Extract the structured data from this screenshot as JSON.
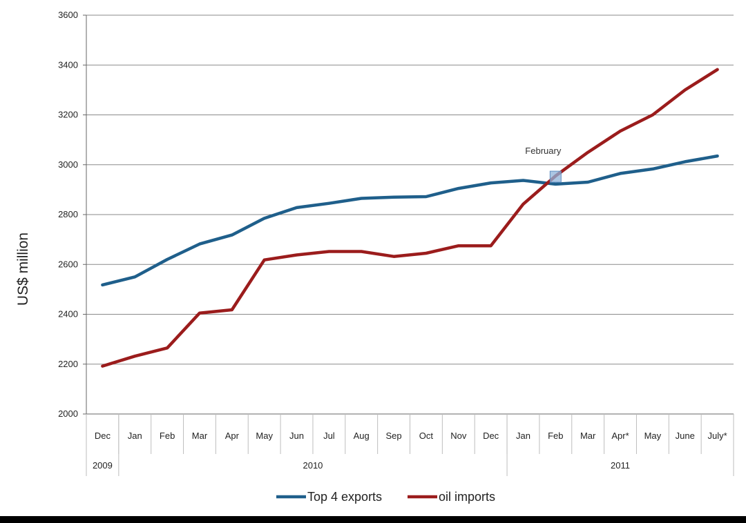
{
  "chart_data": {
    "type": "line",
    "title": "",
    "xlabel": "",
    "ylabel": "US$ million",
    "ylim": [
      2000,
      3600
    ],
    "yticks": [
      "2000",
      "2200",
      "2400",
      "2600",
      "2800",
      "3000",
      "3200",
      "3400",
      "3600"
    ],
    "grid": "horizontal",
    "legend": "bottom",
    "categories": [
      "Dec",
      "Jan",
      "Feb",
      "Mar",
      "Apr",
      "May",
      "Jun",
      "Jul",
      "Aug",
      "Sep",
      "Oct",
      "Nov",
      "Dec",
      "Jan",
      "Feb",
      "Mar",
      "Apr*",
      "May",
      "June",
      "July*"
    ],
    "years": [
      {
        "label": "2009",
        "from": 0,
        "to": 0
      },
      {
        "label": "2010",
        "from": 1,
        "to": 12
      },
      {
        "label": "2011",
        "from": 13,
        "to": 19
      }
    ],
    "series": [
      {
        "name": "Top 4 exports",
        "color": "#1f5f8b",
        "values": [
          2518,
          2550,
          2620,
          2682,
          2718,
          2785,
          2828,
          2845,
          2865,
          2870,
          2872,
          2905,
          2927,
          2937,
          2922,
          2930,
          2965,
          2983,
          3012,
          3035
        ]
      },
      {
        "name": "oil imports",
        "color": "#9b1c1c",
        "values": [
          2192,
          2232,
          2265,
          2405,
          2418,
          2618,
          2638,
          2652,
          2652,
          2632,
          2645,
          2675,
          2675,
          2842,
          2955,
          3050,
          3135,
          3200,
          3300,
          3382
        ]
      }
    ],
    "annotations": [
      {
        "text": "February",
        "category_index": 14,
        "value": 2952
      }
    ]
  }
}
